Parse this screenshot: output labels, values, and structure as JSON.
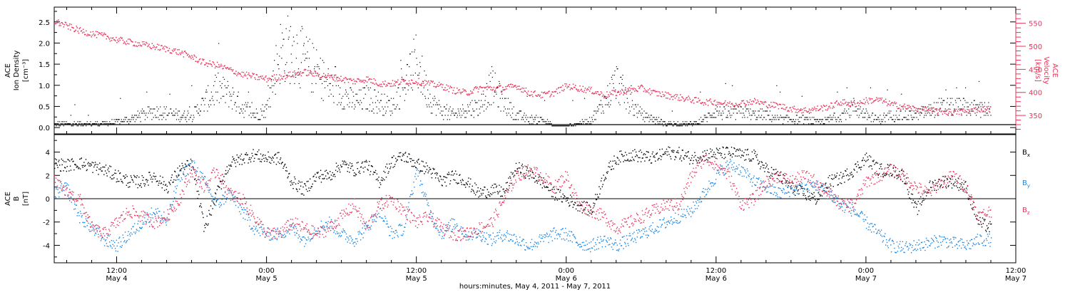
{
  "colors": {
    "axis": "#000000",
    "bx": "#000000",
    "by": "#1a86e0",
    "bz": "#e8335a",
    "density": "#000000",
    "velocity": "#e8335a"
  },
  "x_axis": {
    "label": "hours:minutes, May  4, 2011 - May  7, 2011",
    "range_hours": [
      7,
      84
    ],
    "ticks": [
      {
        "h": 12,
        "time": "12:00",
        "date": "May 4"
      },
      {
        "h": 24,
        "time": "0:00",
        "date": "May 5"
      },
      {
        "h": 36,
        "time": "12:00",
        "date": "May 5"
      },
      {
        "h": 48,
        "time": "0:00",
        "date": "May 6"
      },
      {
        "h": 60,
        "time": "12:00",
        "date": "May 6"
      },
      {
        "h": 72,
        "time": "0:00",
        "date": "May 7"
      },
      {
        "h": 84,
        "time": "12:00",
        "date": "May 7"
      }
    ]
  },
  "top_panel": {
    "left_label_lines": [
      "ACE",
      "Ion Density"
    ],
    "left_unit": "[cm⁻³]",
    "right_label_lines": [
      "ACE",
      "Velocity"
    ],
    "right_unit": "[km/s]",
    "left_ticks": [
      "0.0",
      "0.5",
      "1.0",
      "1.5",
      "2.0",
      "2.5"
    ],
    "right_ticks": [
      "350",
      "400",
      "450",
      "500",
      "550"
    ]
  },
  "bottom_panel": {
    "left_label_lines": [
      "ACE",
      "B"
    ],
    "left_unit": "[nT]",
    "ticks": [
      "-4",
      "-2",
      "0",
      "2",
      "4"
    ],
    "legend": [
      {
        "base": "B",
        "sub": "x",
        "key": "bx"
      },
      {
        "base": "B",
        "sub": "y",
        "key": "by"
      },
      {
        "base": "B",
        "sub": "z",
        "key": "bz"
      }
    ]
  },
  "chart_data": [
    {
      "type": "scatter",
      "title": "",
      "xlabel": "hours:minutes, May  4, 2011 - May  7, 2011",
      "ylabel": "ACE Ion Density [cm-3]",
      "ylim": [
        -0.15,
        2.85
      ],
      "y2label": "ACE Velocity [km/s]",
      "y2lim": [
        310,
        585
      ],
      "series": [
        {
          "name": "Ion Density",
          "axis": "left",
          "x": [
            7,
            9,
            11,
            13,
            14,
            15,
            16,
            17,
            18,
            19,
            20,
            21,
            22,
            23,
            24,
            25,
            26,
            27,
            28,
            29,
            30,
            31,
            32,
            33,
            34,
            35,
            36,
            37,
            38,
            39,
            40,
            41,
            42,
            43,
            44,
            45,
            46,
            47,
            48,
            49,
            50,
            51,
            52,
            53,
            54,
            55,
            56,
            57,
            58,
            59,
            60,
            61,
            62,
            63,
            64,
            65,
            66,
            67,
            68,
            69,
            70,
            71,
            72,
            73,
            74,
            75,
            76,
            77,
            78,
            79,
            80,
            81,
            82
          ],
          "y": [
            0.1,
            0.1,
            0.1,
            0.2,
            0.3,
            0.4,
            0.35,
            0.3,
            0.3,
            0.6,
            0.9,
            0.8,
            0.5,
            0.3,
            0.45,
            1.8,
            1.9,
            1.6,
            1.3,
            1.0,
            0.8,
            0.6,
            0.7,
            0.6,
            0.5,
            1.0,
            1.6,
            0.7,
            0.4,
            0.3,
            0.45,
            0.5,
            1.0,
            0.6,
            0.3,
            0.2,
            0.2,
            0.05,
            0.05,
            0.1,
            0.2,
            0.6,
            1.1,
            0.6,
            0.3,
            0.2,
            0.1,
            0.1,
            0.1,
            0.2,
            0.4,
            0.3,
            0.4,
            0.3,
            0.3,
            0.2,
            0.2,
            0.2,
            0.15,
            0.2,
            0.3,
            0.5,
            0.3,
            0.2,
            0.3,
            0.3,
            0.3,
            0.4,
            0.5,
            0.5,
            0.5,
            0.45,
            0.4
          ]
        },
        {
          "name": "Velocity",
          "axis": "right",
          "x": [
            7,
            8,
            9,
            10,
            11,
            12,
            13,
            14,
            15,
            16,
            17,
            18,
            19,
            20,
            21,
            22,
            23,
            24,
            25,
            26,
            27,
            28,
            29,
            30,
            31,
            32,
            33,
            34,
            35,
            36,
            37,
            38,
            39,
            40,
            41,
            42,
            43,
            44,
            45,
            46,
            47,
            48,
            49,
            50,
            51,
            52,
            53,
            54,
            55,
            56,
            57,
            58,
            59,
            60,
            61,
            62,
            63,
            64,
            65,
            66,
            67,
            68,
            69,
            70,
            71,
            72,
            73,
            74,
            75,
            76,
            77,
            78,
            79,
            80,
            81,
            82
          ],
          "y": [
            555,
            545,
            535,
            528,
            523,
            515,
            510,
            505,
            500,
            495,
            488,
            478,
            465,
            460,
            450,
            440,
            435,
            430,
            435,
            440,
            445,
            440,
            435,
            430,
            425,
            430,
            420,
            420,
            425,
            425,
            420,
            415,
            405,
            400,
            410,
            410,
            410,
            415,
            400,
            395,
            400,
            415,
            410,
            405,
            395,
            400,
            405,
            410,
            400,
            395,
            390,
            385,
            380,
            380,
            375,
            378,
            382,
            375,
            372,
            365,
            362,
            365,
            370,
            380,
            375,
            383,
            385,
            375,
            370,
            365,
            362,
            360,
            358,
            360,
            365,
            365
          ]
        }
      ]
    },
    {
      "type": "scatter",
      "title": "",
      "xlabel": "hours:minutes, May  4, 2011 - May  7, 2011",
      "ylabel": "ACE B [nT]",
      "ylim": [
        -5.5,
        5.5
      ],
      "series": [
        {
          "name": "Bx",
          "x": [
            7,
            8,
            9,
            10,
            11,
            12,
            13,
            14,
            15,
            16,
            17,
            18,
            19,
            20,
            21,
            22,
            23,
            24,
            25,
            26,
            27,
            28,
            29,
            30,
            31,
            32,
            33,
            34,
            35,
            36,
            37,
            38,
            39,
            40,
            41,
            42,
            43,
            44,
            45,
            46,
            47,
            48,
            49,
            50,
            51,
            52,
            53,
            54,
            55,
            56,
            57,
            58,
            59,
            60,
            61,
            62,
            63,
            64,
            65,
            66,
            67,
            68,
            69,
            70,
            71,
            72,
            73,
            74,
            75,
            76,
            77,
            78,
            79,
            80,
            81,
            82
          ],
          "y": [
            3.0,
            2.9,
            3.1,
            2.8,
            2.5,
            2.0,
            1.5,
            1.5,
            2.0,
            1.0,
            2.5,
            3.0,
            -2.5,
            0.5,
            3.0,
            3.5,
            3.8,
            3.5,
            3.5,
            1.5,
            0.8,
            2.0,
            2.0,
            3.0,
            2.5,
            3.0,
            1.5,
            3.2,
            3.7,
            3.0,
            2.5,
            1.5,
            2.0,
            1.5,
            0.5,
            0.8,
            0.6,
            2.7,
            2.2,
            1.5,
            0.5,
            0.0,
            -0.5,
            -1.0,
            2.0,
            3.5,
            3.8,
            3.7,
            3.5,
            4.0,
            3.9,
            3.5,
            3.8,
            3.9,
            4.0,
            3.8,
            3.7,
            2.5,
            2.0,
            1.0,
            0.5,
            0.0,
            1.5,
            1.8,
            2.5,
            3.5,
            2.5,
            2.5,
            2.0,
            -1.0,
            1.0,
            1.5,
            1.5,
            1.0,
            -2.0,
            -2.5
          ]
        },
        {
          "name": "By",
          "x": [
            7,
            8,
            9,
            10,
            11,
            12,
            13,
            14,
            15,
            16,
            17,
            18,
            19,
            20,
            21,
            22,
            23,
            24,
            25,
            26,
            27,
            28,
            29,
            30,
            31,
            32,
            33,
            34,
            35,
            36,
            37,
            38,
            39,
            40,
            41,
            42,
            43,
            44,
            45,
            46,
            47,
            48,
            49,
            50,
            51,
            52,
            53,
            54,
            55,
            56,
            57,
            58,
            59,
            60,
            61,
            62,
            63,
            64,
            65,
            66,
            67,
            68,
            69,
            70,
            71,
            72,
            73,
            74,
            75,
            76,
            77,
            78,
            79,
            80,
            81,
            82
          ],
          "y": [
            0.5,
            1.0,
            -1.5,
            -2.5,
            -3.5,
            -4.0,
            -3.0,
            -2.0,
            -1.0,
            -2.0,
            2.0,
            3.0,
            1.5,
            -0.5,
            0.5,
            -1.0,
            -2.5,
            -3.0,
            -3.0,
            -2.5,
            -3.5,
            -2.5,
            -2.0,
            -3.0,
            -3.5,
            -2.5,
            -1.0,
            -3.0,
            -2.5,
            2.5,
            -1.0,
            -3.0,
            -2.0,
            -3.0,
            -3.0,
            -3.5,
            -3.0,
            -3.5,
            -4.0,
            -3.5,
            -3.0,
            -3.0,
            -3.8,
            -4.0,
            -3.5,
            -4.0,
            -3.5,
            -3.0,
            -2.5,
            -2.0,
            -1.5,
            -1.0,
            0.5,
            2.0,
            3.0,
            2.5,
            1.5,
            1.0,
            0.5,
            0.8,
            1.0,
            1.2,
            0.5,
            -0.5,
            -1.0,
            -2.0,
            -3.0,
            -4.0,
            -4.2,
            -4.0,
            -3.8,
            -3.5,
            -3.8,
            -4.0,
            -3.5,
            -3.5
          ]
        },
        {
          "name": "Bz",
          "x": [
            7,
            8,
            9,
            10,
            11,
            12,
            13,
            14,
            15,
            16,
            17,
            18,
            19,
            20,
            21,
            22,
            23,
            24,
            25,
            26,
            27,
            28,
            29,
            30,
            31,
            32,
            33,
            34,
            35,
            36,
            37,
            38,
            39,
            40,
            41,
            42,
            43,
            44,
            45,
            46,
            47,
            48,
            49,
            50,
            51,
            52,
            53,
            54,
            55,
            56,
            57,
            58,
            59,
            60,
            61,
            62,
            63,
            64,
            65,
            66,
            67,
            68,
            69,
            70,
            71,
            72,
            73,
            74,
            75,
            76,
            77,
            78,
            79,
            80,
            81,
            82
          ],
          "y": [
            1.5,
            0.5,
            0.0,
            -2.5,
            -3.0,
            -2.0,
            -1.0,
            -1.5,
            -2.0,
            -1.5,
            0.0,
            2.5,
            1.0,
            2.5,
            0.5,
            0.0,
            -1.5,
            -3.0,
            -3.0,
            -2.0,
            -2.5,
            -3.0,
            -2.5,
            -1.5,
            -0.5,
            -2.5,
            -0.5,
            0.0,
            -1.0,
            -2.0,
            -1.5,
            -2.5,
            -3.0,
            -3.0,
            -2.5,
            -2.0,
            0.0,
            2.0,
            2.5,
            2.0,
            1.0,
            2.0,
            -0.5,
            -1.0,
            -1.5,
            -2.5,
            -2.0,
            -1.5,
            -1.0,
            -0.5,
            -0.5,
            2.0,
            3.5,
            3.0,
            2.0,
            -0.5,
            0.0,
            1.5,
            2.0,
            1.5,
            2.0,
            1.5,
            0.5,
            -0.5,
            -0.5,
            1.5,
            2.0,
            2.5,
            2.0,
            1.0,
            0.5,
            1.5,
            2.0,
            1.0,
            -1.5,
            -1.0
          ]
        }
      ]
    }
  ]
}
